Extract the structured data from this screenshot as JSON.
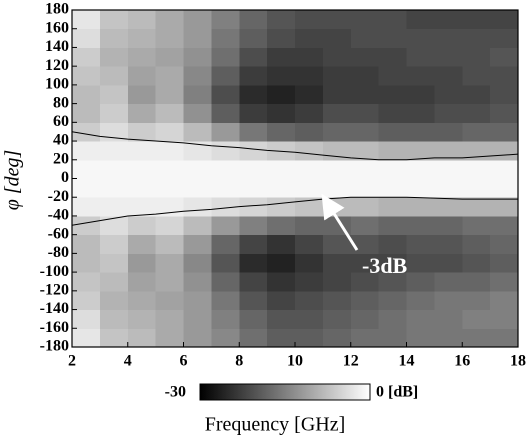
{
  "chart_data": {
    "type": "heatmap",
    "x_label": "Frequency [GHz]",
    "y_label": "φ [deg]",
    "x_bins": [
      2,
      3,
      4,
      5,
      6,
      7,
      8,
      9,
      10,
      11,
      12,
      13,
      14,
      15,
      16,
      17,
      18
    ],
    "y_bins": [
      -180,
      -160,
      -140,
      -120,
      -100,
      -80,
      -60,
      -40,
      -20,
      0,
      20,
      40,
      60,
      80,
      100,
      120,
      140,
      160,
      180
    ],
    "z": [
      [
        -3,
        -7,
        -8,
        -10,
        -12,
        -14,
        -17,
        -19,
        -19,
        -18,
        -17,
        -17,
        -16,
        -16,
        -16,
        -16
      ],
      [
        -4,
        -8,
        -9,
        -10,
        -12,
        -15,
        -18,
        -20,
        -20,
        -19,
        -18,
        -17,
        -16,
        -16,
        -15,
        -15
      ],
      [
        -6,
        -9,
        -10,
        -11,
        -12,
        -16,
        -20,
        -22,
        -21,
        -20,
        -19,
        -18,
        -17,
        -16,
        -16,
        -15
      ],
      [
        -7,
        -8,
        -11,
        -10,
        -13,
        -18,
        -22,
        -24,
        -23,
        -22,
        -21,
        -20,
        -19,
        -18,
        -18,
        -17
      ],
      [
        -8,
        -7,
        -12,
        -10,
        -14,
        -20,
        -25,
        -26,
        -24,
        -22,
        -22,
        -22,
        -21,
        -21,
        -20,
        -19
      ],
      [
        -8,
        -6,
        -10,
        -8,
        -12,
        -18,
        -22,
        -24,
        -22,
        -20,
        -20,
        -21,
        -20,
        -20,
        -19,
        -18
      ],
      [
        -6,
        -4,
        -6,
        -5,
        -8,
        -12,
        -15,
        -17,
        -18,
        -18,
        -17,
        -18,
        -18,
        -18,
        -17,
        -17
      ],
      [
        -2,
        -2,
        -2,
        -2,
        -3,
        -4,
        -5,
        -6,
        -7,
        -8,
        -8,
        -9,
        -9,
        -9,
        -9,
        -9
      ],
      [
        -1,
        -1,
        -1,
        -1,
        -1,
        -1,
        -1,
        -1,
        -1,
        -1,
        -1,
        -1,
        -1,
        -1,
        -1,
        -1
      ],
      [
        -1,
        -1,
        -1,
        -1,
        -1,
        -1,
        -1,
        -1,
        -1,
        -1,
        -1,
        -1,
        -1,
        -1,
        -1,
        -1
      ],
      [
        -2,
        -2,
        -2,
        -2,
        -3,
        -4,
        -5,
        -6,
        -7,
        -8,
        -8,
        -9,
        -9,
        -9,
        -9,
        -9
      ],
      [
        -6,
        -4,
        -6,
        -5,
        -8,
        -12,
        -16,
        -18,
        -19,
        -18,
        -18,
        -19,
        -19,
        -19,
        -18,
        -18
      ],
      [
        -8,
        -6,
        -10,
        -8,
        -13,
        -19,
        -23,
        -24,
        -23,
        -21,
        -21,
        -22,
        -22,
        -21,
        -21,
        -20
      ],
      [
        -8,
        -7,
        -12,
        -10,
        -15,
        -21,
        -25,
        -26,
        -25,
        -23,
        -23,
        -23,
        -23,
        -22,
        -22,
        -21
      ],
      [
        -7,
        -8,
        -11,
        -10,
        -14,
        -19,
        -23,
        -24,
        -24,
        -23,
        -23,
        -22,
        -22,
        -22,
        -21,
        -21
      ],
      [
        -6,
        -9,
        -10,
        -11,
        -13,
        -17,
        -21,
        -23,
        -23,
        -22,
        -22,
        -22,
        -21,
        -21,
        -21,
        -20
      ],
      [
        -4,
        -8,
        -9,
        -10,
        -12,
        -16,
        -19,
        -21,
        -22,
        -22,
        -21,
        -21,
        -21,
        -21,
        -21,
        -21
      ],
      [
        -3,
        -7,
        -8,
        -10,
        -12,
        -15,
        -18,
        -20,
        -21,
        -21,
        -21,
        -21,
        -22,
        -22,
        -22,
        -22
      ]
    ],
    "zlim": [
      -30,
      0
    ],
    "zticks": [
      -30,
      {
        "value": 0,
        "label": "0 [dB]"
      }
    ],
    "contour_x": [
      2,
      3,
      4,
      5,
      6,
      7,
      8,
      9,
      10,
      11,
      12,
      13,
      14,
      15,
      16,
      17,
      18
    ],
    "contour_upper": [
      50,
      45,
      42,
      40,
      38,
      35,
      33,
      30,
      28,
      25,
      22,
      20,
      20,
      22,
      22,
      24,
      26
    ],
    "contour_lower": [
      -50,
      -45,
      -40,
      -38,
      -35,
      -33,
      -30,
      -28,
      -25,
      -22,
      -20,
      -20,
      -20,
      -21,
      -22,
      -22,
      -22
    ],
    "annotation": "-3dB",
    "xlim": [
      2,
      18
    ],
    "ylim": [
      -180,
      180
    ],
    "xticks": [
      2,
      4,
      6,
      8,
      10,
      12,
      14,
      16,
      18
    ],
    "yticks": [
      -180,
      -160,
      -140,
      -120,
      -100,
      -80,
      -60,
      -40,
      -20,
      0,
      20,
      40,
      60,
      80,
      100,
      120,
      140,
      160,
      180
    ]
  }
}
